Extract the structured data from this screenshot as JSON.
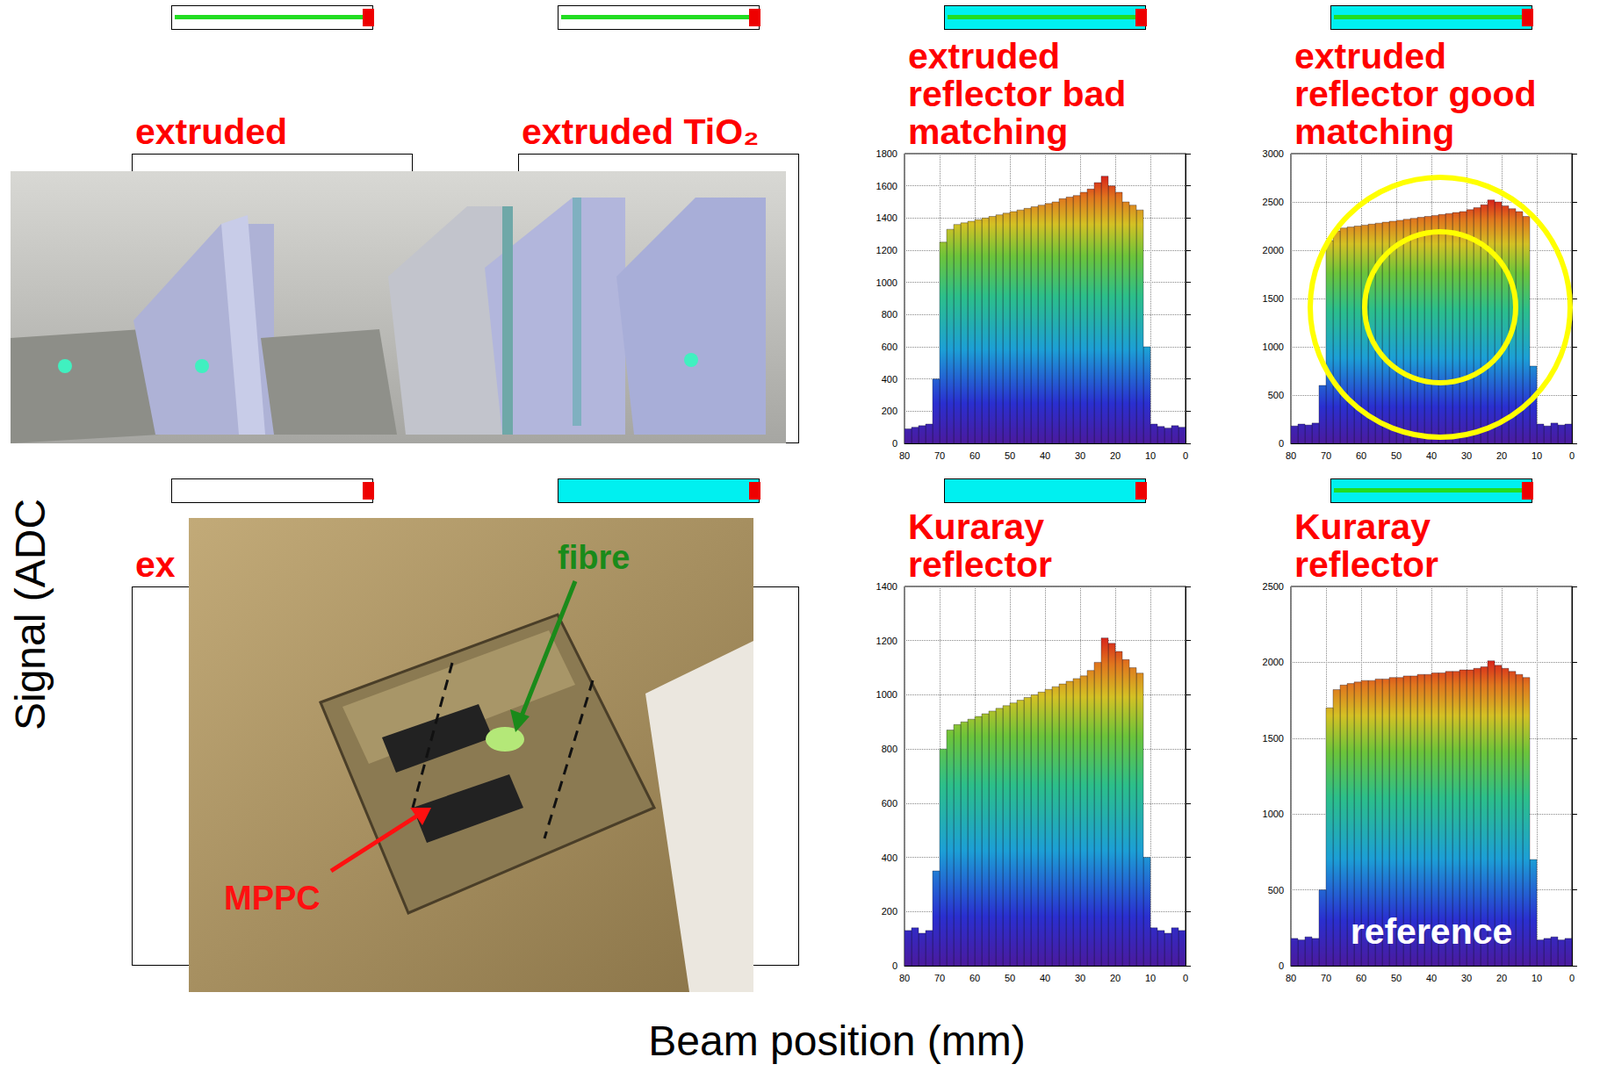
{
  "y_title": "Signal (ADC",
  "x_title": "Beam position (mm)",
  "panels": [
    {
      "title": "extruded",
      "icon": {
        "reflector": false,
        "fibre": true
      },
      "covered": true
    },
    {
      "title": "extruded TiO₂",
      "icon": {
        "reflector": false,
        "fibre": true
      },
      "covered": true
    },
    {
      "title": "extruded reflector bad matching",
      "icon": {
        "reflector": true,
        "fibre": true
      },
      "covered": false
    },
    {
      "title": "extruded reflector good matching",
      "icon": {
        "reflector": true,
        "fibre": true
      },
      "covered": false,
      "highlight": true
    },
    {
      "title": "ex",
      "icon": {
        "reflector": false,
        "fibre": false
      },
      "covered": true
    },
    {
      "icon": {
        "reflector": true,
        "fibre": false
      },
      "covered": true
    },
    {
      "title": "Kuraray reflector",
      "icon": {
        "reflector": true,
        "fibre": false
      },
      "covered": false
    },
    {
      "title": "Kuraray reflector",
      "icon": {
        "reflector": true,
        "fibre": true
      },
      "covered": false,
      "label": "reference"
    }
  ],
  "photos": {
    "fibre_label": "fibre",
    "sensor_label": "MPPC"
  },
  "chart_data": [
    {
      "type": "histogram",
      "bins": [
        0,
        2,
        4,
        6,
        8,
        10,
        12,
        14,
        16,
        18,
        20,
        22,
        24,
        26,
        28,
        30,
        32,
        34,
        36,
        38,
        40,
        42,
        44,
        46,
        48,
        50,
        52,
        54,
        56,
        58,
        60,
        62,
        64,
        66,
        68,
        70,
        72,
        74,
        76,
        78,
        80
      ],
      "values": [
        100,
        110,
        95,
        105,
        120,
        600,
        1450,
        1480,
        1500,
        1560,
        1600,
        1660,
        1620,
        1580,
        1560,
        1540,
        1530,
        1520,
        1500,
        1490,
        1480,
        1470,
        1460,
        1450,
        1440,
        1430,
        1420,
        1410,
        1400,
        1390,
        1380,
        1370,
        1360,
        1330,
        1250,
        400,
        120,
        110,
        100,
        90
      ],
      "xlim": [
        80,
        0
      ],
      "xticks": [
        0,
        10,
        20,
        30,
        40,
        50,
        60,
        70,
        80
      ],
      "ylim": [
        0,
        1800
      ],
      "yticks": [
        0,
        200,
        400,
        600,
        800,
        1000,
        1200,
        1400,
        1600,
        1800
      ],
      "grid": true
    },
    {
      "type": "histogram",
      "bins": [
        0,
        2,
        4,
        6,
        8,
        10,
        12,
        14,
        16,
        18,
        20,
        22,
        24,
        26,
        28,
        30,
        32,
        34,
        36,
        38,
        40,
        42,
        44,
        46,
        48,
        50,
        52,
        54,
        56,
        58,
        60,
        62,
        64,
        66,
        68,
        70,
        72,
        74,
        76,
        78,
        80
      ],
      "values": [
        200,
        190,
        210,
        180,
        200,
        800,
        2350,
        2400,
        2430,
        2460,
        2500,
        2520,
        2470,
        2440,
        2420,
        2400,
        2390,
        2380,
        2370,
        2360,
        2350,
        2340,
        2330,
        2320,
        2310,
        2300,
        2290,
        2280,
        2270,
        2260,
        2250,
        2240,
        2230,
        2200,
        2100,
        600,
        210,
        190,
        200,
        180
      ],
      "xlim": [
        80,
        0
      ],
      "xticks": [
        0,
        10,
        20,
        30,
        40,
        50,
        60,
        70,
        80
      ],
      "ylim": [
        0,
        3000
      ],
      "yticks": [
        0,
        500,
        1000,
        1500,
        2000,
        2500,
        3000
      ],
      "grid": true
    },
    {
      "type": "histogram",
      "bins": [
        0,
        2,
        4,
        6,
        8,
        10,
        12,
        14,
        16,
        18,
        20,
        22,
        24,
        26,
        28,
        30,
        32,
        34,
        36,
        38,
        40,
        42,
        44,
        46,
        48,
        50,
        52,
        54,
        56,
        58,
        60,
        62,
        64,
        66,
        68,
        70,
        72,
        74,
        76,
        78,
        80
      ],
      "values": [
        130,
        140,
        120,
        130,
        140,
        400,
        1080,
        1100,
        1130,
        1160,
        1190,
        1210,
        1120,
        1090,
        1070,
        1060,
        1050,
        1040,
        1030,
        1020,
        1010,
        1000,
        990,
        980,
        970,
        960,
        950,
        940,
        930,
        920,
        910,
        900,
        890,
        870,
        800,
        350,
        130,
        120,
        140,
        130
      ],
      "xlim": [
        80,
        0
      ],
      "xticks": [
        0,
        10,
        20,
        30,
        40,
        50,
        60,
        70,
        80
      ],
      "ylim": [
        0,
        1400
      ],
      "yticks": [
        0,
        200,
        400,
        600,
        800,
        1000,
        1200,
        1400
      ],
      "grid": true
    },
    {
      "type": "histogram",
      "bins": [
        0,
        2,
        4,
        6,
        8,
        10,
        12,
        14,
        16,
        18,
        20,
        22,
        24,
        26,
        28,
        30,
        32,
        34,
        36,
        38,
        40,
        42,
        44,
        46,
        48,
        50,
        52,
        54,
        56,
        58,
        60,
        62,
        64,
        66,
        68,
        70,
        72,
        74,
        76,
        78,
        80
      ],
      "values": [
        180,
        170,
        190,
        180,
        170,
        700,
        1900,
        1920,
        1940,
        1960,
        1980,
        2010,
        1970,
        1960,
        1950,
        1950,
        1940,
        1940,
        1930,
        1930,
        1920,
        1920,
        1910,
        1910,
        1900,
        1900,
        1890,
        1890,
        1880,
        1880,
        1870,
        1860,
        1850,
        1820,
        1700,
        500,
        180,
        190,
        170,
        180
      ],
      "xlim": [
        80,
        0
      ],
      "xticks": [
        0,
        10,
        20,
        30,
        40,
        50,
        60,
        70,
        80
      ],
      "ylim": [
        0,
        2500
      ],
      "yticks": [
        0,
        500,
        1000,
        1500,
        2000,
        2500
      ],
      "grid": true
    }
  ]
}
